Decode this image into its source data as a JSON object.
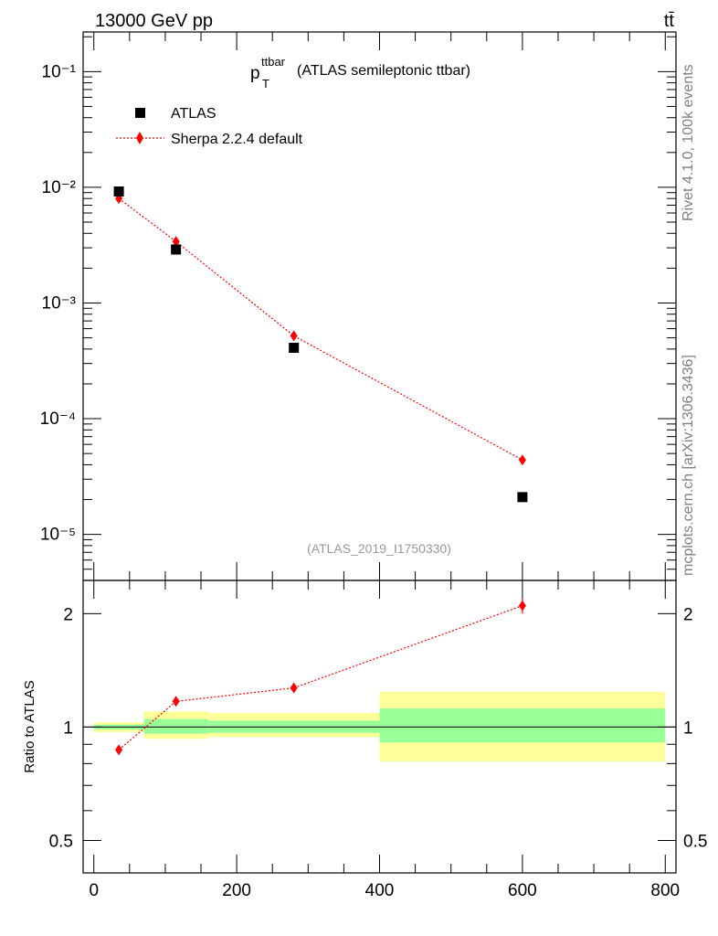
{
  "header": {
    "left_title": "13000 GeV pp",
    "right_title": "tt̄"
  },
  "side_notes": {
    "top": "Rivet 4.1.0,  100k events",
    "bottom": "mcplots.cern.ch [arXiv:1306.3436]"
  },
  "colors": {
    "mc": "#ff0000",
    "band_inner": "#99ff99",
    "band_outer": "#ffff99",
    "data": "#000000",
    "note": "#808080"
  },
  "chart_data": [
    {
      "type": "scatter",
      "panel": "main",
      "title_main": "p",
      "title_sup": "ttbar",
      "title_sub": "T",
      "title_rest": "(ATLAS semileptonic ttbar)",
      "watermark": "(ATLAS_2019_I1750330)",
      "xlabel": "",
      "ylabel": "",
      "yscale": "log",
      "ylim": [
        4e-06,
        0.22
      ],
      "xlim": [
        -15,
        815
      ],
      "y_tick_labels": [
        "10⁻¹",
        "10⁻²",
        "10⁻³",
        "10⁻⁴",
        "10⁻⁵"
      ],
      "y_tick_values": [
        0.1,
        0.01,
        0.001,
        0.0001,
        1e-05
      ],
      "legend": [
        "ATLAS",
        "Sherpa 2.2.4 default"
      ],
      "legend_position": "top-left",
      "series": [
        {
          "name": "ATLAS",
          "x": [
            35,
            115,
            280,
            600
          ],
          "values": [
            0.0092,
            0.0029,
            0.00041,
            2.1e-05
          ]
        },
        {
          "name": "Sherpa 2.2.4 default",
          "x": [
            35,
            115,
            280,
            600
          ],
          "values": [
            0.008,
            0.0034,
            0.00052,
            4.4e-05
          ]
        }
      ]
    },
    {
      "type": "line",
      "panel": "ratio",
      "ylabel": "Ratio to ATLAS",
      "yscale": "log",
      "ylim": [
        0.41,
        2.45
      ],
      "xlim": [
        -15,
        815
      ],
      "y_tick_labels": [
        "2",
        "1",
        "0.5"
      ],
      "y_tick_values": [
        2,
        1,
        0.5
      ],
      "x_tick_labels": [
        "0",
        "200",
        "400",
        "600",
        "800"
      ],
      "x_tick_values": [
        0,
        200,
        400,
        600,
        800
      ],
      "bins": [
        {
          "xlo": 0,
          "xhi": 70,
          "inner": [
            0.985,
            1.015
          ],
          "outer": [
            0.97,
            1.03
          ]
        },
        {
          "xlo": 70,
          "xhi": 160,
          "inner": [
            0.96,
            1.05
          ],
          "outer": [
            0.93,
            1.1
          ]
        },
        {
          "xlo": 160,
          "xhi": 400,
          "inner": [
            0.965,
            1.04
          ],
          "outer": [
            0.94,
            1.09
          ]
        },
        {
          "xlo": 400,
          "xhi": 800,
          "inner": [
            0.91,
            1.12
          ],
          "outer": [
            0.81,
            1.24
          ]
        }
      ],
      "series": [
        {
          "name": "Sherpa 2.2.4 default",
          "x": [
            35,
            115,
            280,
            600
          ],
          "values": [
            0.87,
            1.17,
            1.27,
            2.1
          ],
          "err_hi": [
            0,
            0,
            0,
            0.1
          ],
          "err_lo": [
            0,
            0,
            0,
            0.1
          ]
        }
      ]
    }
  ]
}
